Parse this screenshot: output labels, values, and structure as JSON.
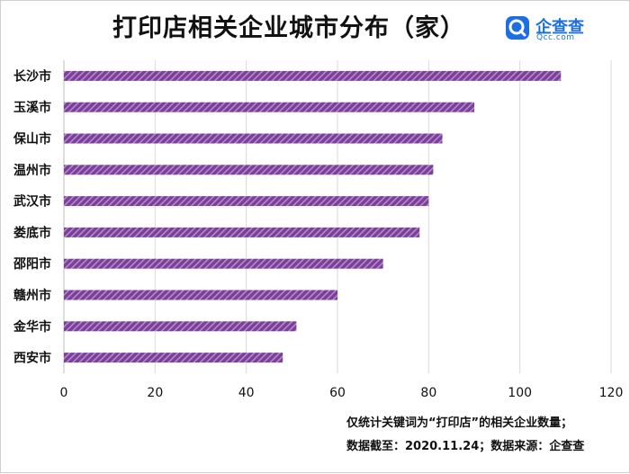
{
  "title": "打印店相关企业城市分布（家）",
  "logo": {
    "name": "企查查",
    "sub": "Qcc.com",
    "icon": "qcc-logo-icon",
    "color": "#1d6fe0"
  },
  "notes": [
    "仅统计关键词为“打印店”的相关企业数量；",
    "数据截至：2020.11.24；数据来源：企查查"
  ],
  "chart_data": {
    "type": "bar",
    "orientation": "horizontal",
    "categories": [
      "长沙市",
      "玉溪市",
      "保山市",
      "温州市",
      "武汉市",
      "娄底市",
      "邵阳市",
      "赣州市",
      "金华市",
      "西安市"
    ],
    "values": [
      109,
      90,
      83,
      81,
      80,
      78,
      70,
      60,
      51,
      48
    ],
    "title": "打印店相关企业城市分布（家）",
    "xlabel": "",
    "ylabel": "",
    "xlim": [
      0,
      120
    ],
    "xticks": [
      0,
      20,
      40,
      60,
      80,
      100,
      120
    ],
    "grid": true,
    "legend": "none",
    "bar_color": "#7b3f99",
    "bar_stripe_color": "#b48acb"
  }
}
